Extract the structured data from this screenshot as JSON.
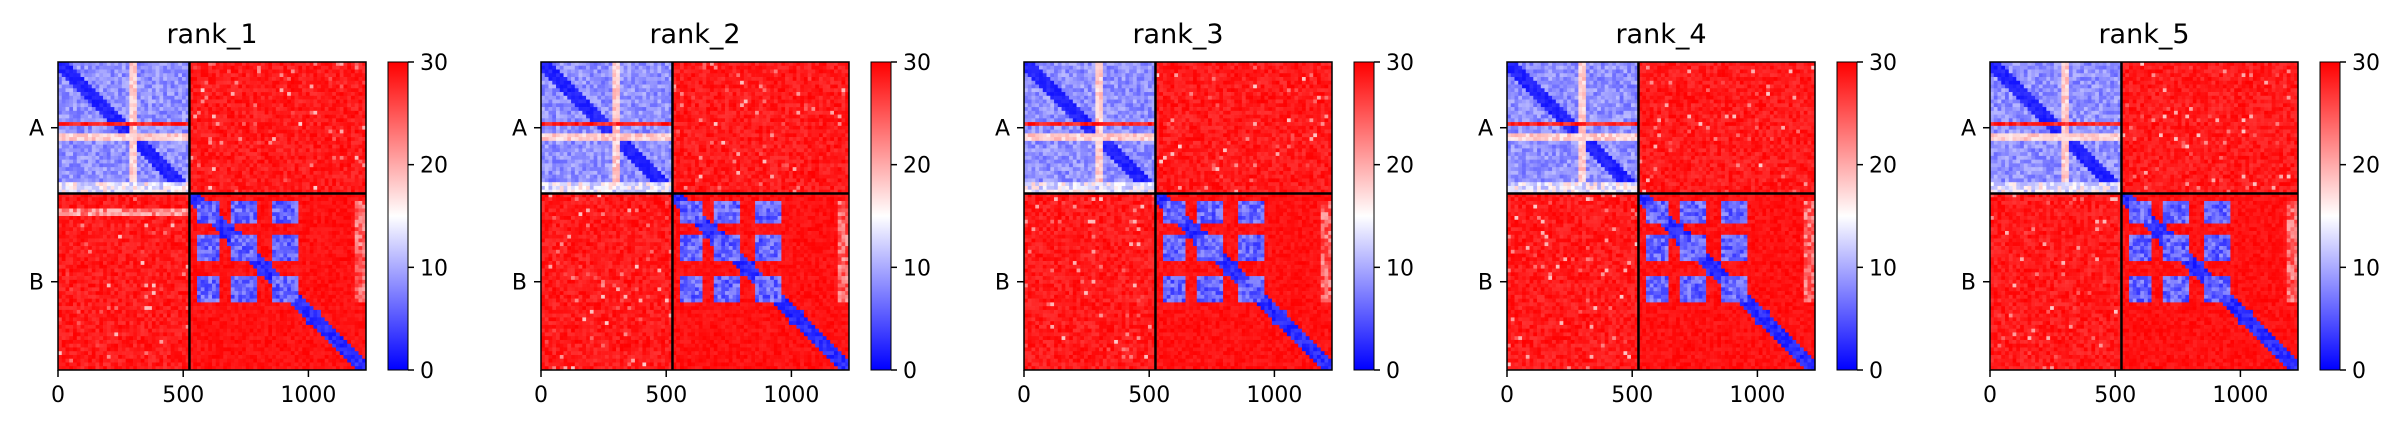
{
  "chart_data": {
    "type": "heatmap",
    "colormap": {
      "name": "bwr",
      "low": "#0000ff",
      "mid": "#ffffff",
      "high": "#ff0000"
    },
    "color_range": [
      0,
      30
    ],
    "colorbar_ticks": [
      "0",
      "10",
      "20",
      "30"
    ],
    "x_ticks": [
      "0",
      "500",
      "1000"
    ],
    "x_tick_values": [
      0,
      500,
      1000
    ],
    "y_tick_labels": [
      "A",
      "B"
    ],
    "total_residues": 1230,
    "chain_boundary": 525,
    "chains": [
      "A",
      "B"
    ],
    "panels": [
      {
        "title": "rank_1"
      },
      {
        "title": "rank_2"
      },
      {
        "title": "rank_3"
      },
      {
        "title": "rank_4"
      },
      {
        "title": "rank_5"
      }
    ]
  }
}
